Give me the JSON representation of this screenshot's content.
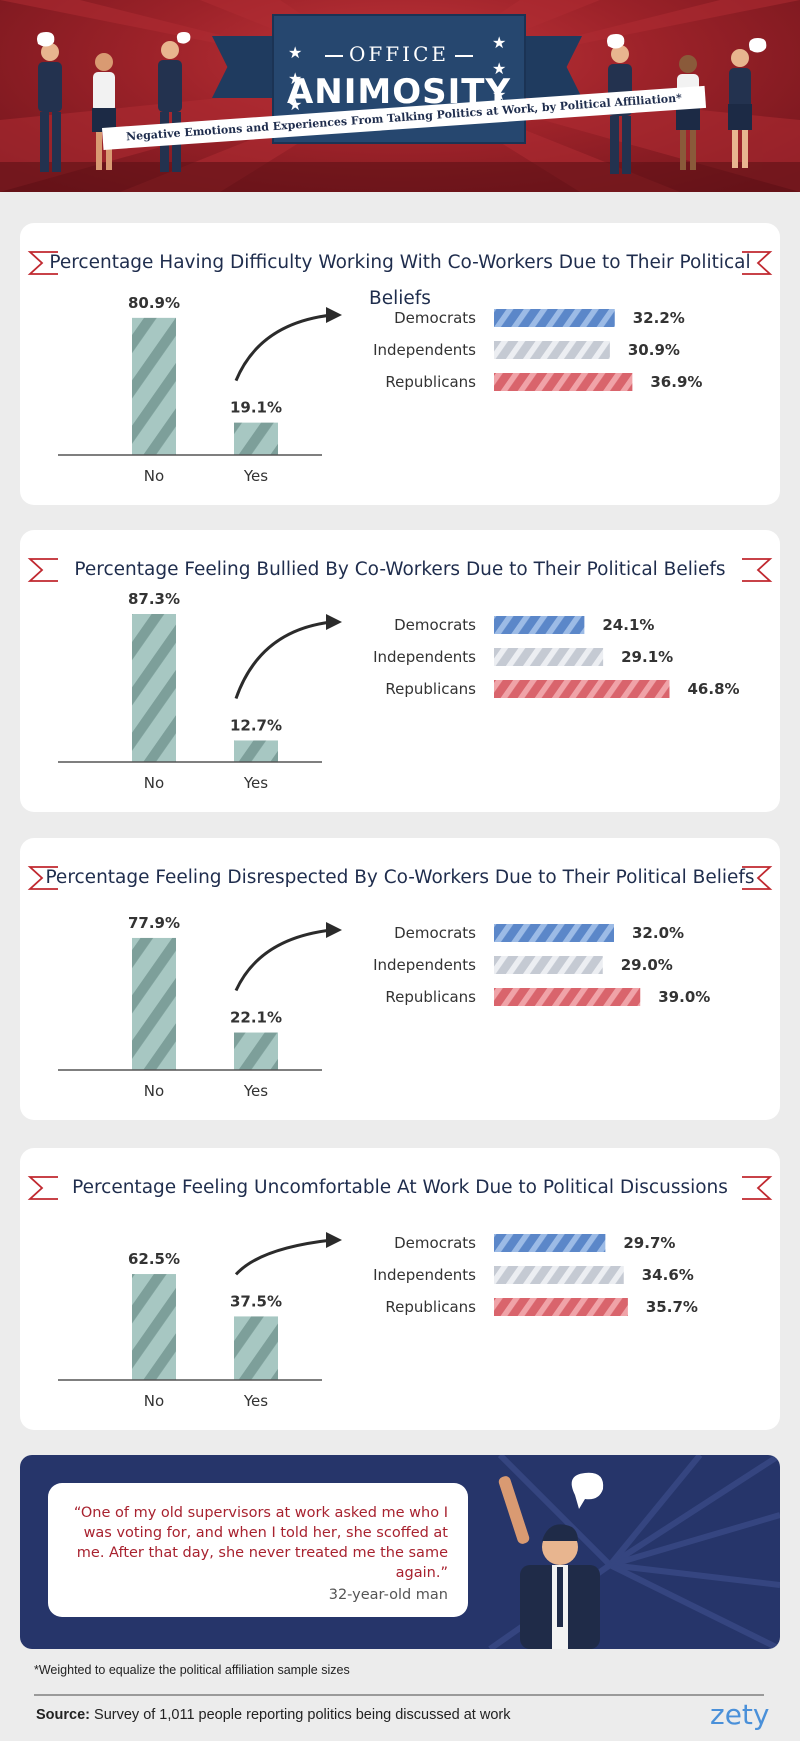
{
  "header": {
    "title_line1": "OFFICE",
    "title_line2": "ANIMOSITY",
    "subtitle": "Negative Emotions and Experiences From Talking Politics at Work, by Political Affiliation*"
  },
  "colors": {
    "main_bar": "#a7c7c2",
    "main_bar_stripe": "#7d9f9a",
    "democrats": "#5b87c9",
    "independents": "#c5cad3",
    "republicans": "#d9646c",
    "title": "#1f2d4d",
    "ribbon": "#c0282f"
  },
  "chart_data": [
    {
      "type": "bar",
      "title": "Percentage Having Difficulty Working With Co-Workers Due to Their Political Beliefs",
      "categories": [
        "No",
        "Yes"
      ],
      "values": [
        80.9,
        19.1
      ],
      "value_labels": [
        "80.9%",
        "19.1%"
      ],
      "breakdown": {
        "type": "bar",
        "categories": [
          "Democrats",
          "Independents",
          "Republicans"
        ],
        "values": [
          32.2,
          30.9,
          36.9
        ],
        "value_labels": [
          "32.2%",
          "30.9%",
          "36.9%"
        ]
      }
    },
    {
      "type": "bar",
      "title": "Percentage Feeling Bullied By Co-Workers Due to Their Political Beliefs",
      "categories": [
        "No",
        "Yes"
      ],
      "values": [
        87.3,
        12.7
      ],
      "value_labels": [
        "87.3%",
        "12.7%"
      ],
      "breakdown": {
        "type": "bar",
        "categories": [
          "Democrats",
          "Independents",
          "Republicans"
        ],
        "values": [
          24.1,
          29.1,
          46.8
        ],
        "value_labels": [
          "24.1%",
          "29.1%",
          "46.8%"
        ]
      }
    },
    {
      "type": "bar",
      "title": "Percentage Feeling Disrespected By Co-Workers Due to Their Political Beliefs",
      "categories": [
        "No",
        "Yes"
      ],
      "values": [
        77.9,
        22.1
      ],
      "value_labels": [
        "77.9%",
        "22.1%"
      ],
      "breakdown": {
        "type": "bar",
        "categories": [
          "Democrats",
          "Independents",
          "Republicans"
        ],
        "values": [
          32.0,
          29.0,
          39.0
        ],
        "value_labels": [
          "32.0%",
          "29.0%",
          "39.0%"
        ]
      }
    },
    {
      "type": "bar",
      "title": "Percentage Feeling Uncomfortable At Work Due to Political Discussions",
      "categories": [
        "No",
        "Yes"
      ],
      "values": [
        62.5,
        37.5
      ],
      "value_labels": [
        "62.5%",
        "37.5%"
      ],
      "breakdown": {
        "type": "bar",
        "categories": [
          "Democrats",
          "Independents",
          "Republicans"
        ],
        "values": [
          29.7,
          34.6,
          35.7
        ],
        "value_labels": [
          "29.7%",
          "34.6%",
          "35.7%"
        ]
      }
    }
  ],
  "quote": {
    "text": "“One of my old supervisors at work asked me who I was voting for, and when I told her, she scoffed at me. After that day, she never treated me the same again.”",
    "author": "32-year-old man"
  },
  "footnote": "*Weighted to equalize the political affiliation sample sizes",
  "source": {
    "label": "Source:",
    "text": "Survey of 1,011 people reporting politics being discussed at work"
  },
  "brand": "zety"
}
